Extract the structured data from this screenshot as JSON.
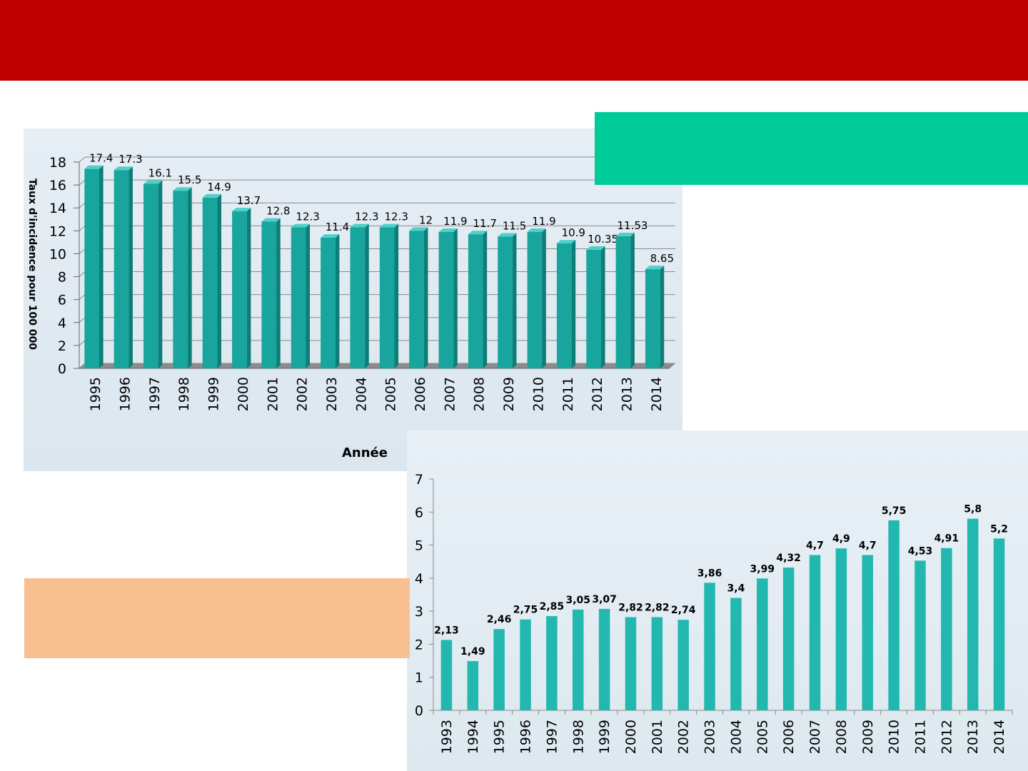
{
  "colors": {
    "banner": "#c00000",
    "green_box": "#00cc99",
    "orange_box": "#f8c090",
    "bar": "#1aa8a0",
    "bar2": "#22b8b0"
  },
  "chart_data": [
    {
      "type": "bar",
      "categories": [
        "1995",
        "1996",
        "1997",
        "1998",
        "1999",
        "2000",
        "2001",
        "2002",
        "2003",
        "2004",
        "2005",
        "2006",
        "2007",
        "2008",
        "2009",
        "2010",
        "2011",
        "2012",
        "2013",
        "2014"
      ],
      "values": [
        17.4,
        17.3,
        16.1,
        15.5,
        14.9,
        13.7,
        12.8,
        12.3,
        11.4,
        12.3,
        12.3,
        12,
        11.9,
        11.7,
        11.5,
        11.9,
        10.9,
        10.35,
        11.53,
        8.65
      ],
      "labels": [
        "17.4",
        "17.3",
        "16.1",
        "15.5",
        "14.9",
        "13.7",
        "12.8",
        "12.3",
        "11.4",
        "12.3",
        "12.3",
        "12",
        "11.9",
        "11.7",
        "11.5",
        "11.9",
        "10.9",
        "10.35",
        "11.53",
        "8.65"
      ],
      "yticks": [
        "0",
        "2",
        "4",
        "6",
        "8",
        "10",
        "12",
        "14",
        "16",
        "18"
      ],
      "ylim": [
        0,
        18
      ],
      "xlabel": "Année",
      "ylabel": "Taux d'incidence pour 100 000",
      "grid": true
    },
    {
      "type": "bar",
      "categories": [
        "1993",
        "1994",
        "1995",
        "1996",
        "1997",
        "1998",
        "1999",
        "2000",
        "2001",
        "2002",
        "2003",
        "2004",
        "2005",
        "2006",
        "2007",
        "2008",
        "2009",
        "2010",
        "2011",
        "2012",
        "2013",
        "2014"
      ],
      "values": [
        2.13,
        1.49,
        2.46,
        2.75,
        2.85,
        3.05,
        3.07,
        2.82,
        2.82,
        2.74,
        3.86,
        3.4,
        3.99,
        4.32,
        4.7,
        4.9,
        4.7,
        5.75,
        4.53,
        4.91,
        5.8,
        5.2
      ],
      "labels": [
        "2,13",
        "1,49",
        "2,46",
        "2,75",
        "2,85",
        "3,05",
        "3,07",
        "2,82",
        "2,82",
        "2,74",
        "3,86",
        "3,4",
        "3,99",
        "4,32",
        "4,7",
        "4,9",
        "4,7",
        "5,75",
        "4,53",
        "4,91",
        "5,8",
        "5,2"
      ],
      "yticks": [
        "0",
        "1",
        "2",
        "3",
        "4",
        "5",
        "6",
        "7"
      ],
      "ylim": [
        0,
        7
      ],
      "grid": false
    }
  ]
}
